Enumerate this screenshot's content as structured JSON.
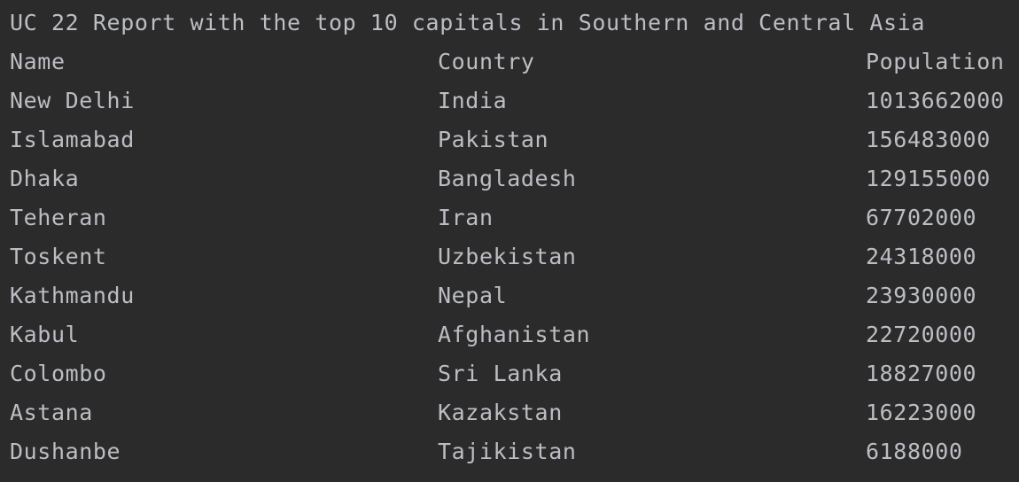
{
  "title": "UC 22 Report with the top 10 capitals in Southern and Central Asia",
  "header": {
    "name": "Name",
    "country": "Country",
    "population": "Population"
  },
  "rows": [
    {
      "name": "New Delhi",
      "country": "India",
      "population": "1013662000"
    },
    {
      "name": "Islamabad",
      "country": "Pakistan",
      "population": "156483000"
    },
    {
      "name": "Dhaka",
      "country": "Bangladesh",
      "population": "129155000"
    },
    {
      "name": "Teheran",
      "country": "Iran",
      "population": "67702000"
    },
    {
      "name": "Toskent",
      "country": "Uzbekistan",
      "population": "24318000"
    },
    {
      "name": "Kathmandu",
      "country": "Nepal",
      "population": "23930000"
    },
    {
      "name": "Kabul",
      "country": "Afghanistan",
      "population": "22720000"
    },
    {
      "name": "Colombo",
      "country": "Sri Lanka",
      "population": "18827000"
    },
    {
      "name": "Astana",
      "country": "Kazakstan",
      "population": "16223000"
    },
    {
      "name": "Dushanbe",
      "country": "Tajikistan",
      "population": "6188000"
    }
  ],
  "colors": {
    "background": "#2b2b2b",
    "text": "#bcbec4"
  }
}
